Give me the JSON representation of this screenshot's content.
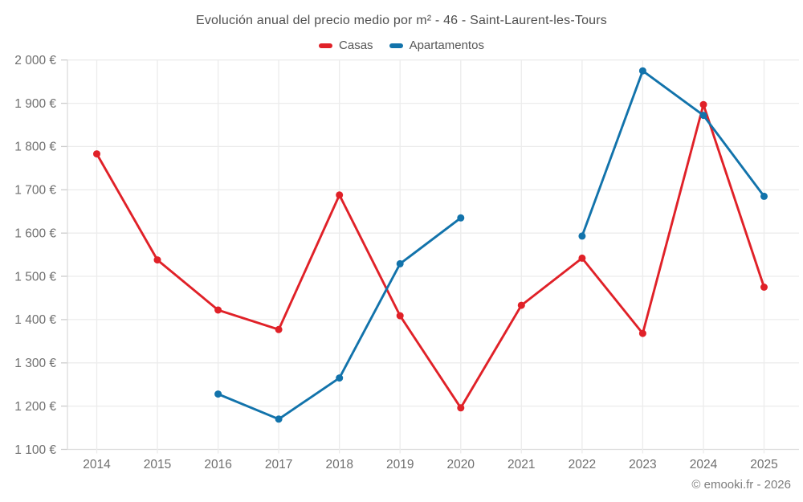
{
  "page": {
    "footer": "© emooki.fr - 2026"
  },
  "chart_data": {
    "type": "line",
    "title": "Evolución anual del precio medio por m² - 46 - Saint-Laurent-les-Tours",
    "x": [
      "2014",
      "2015",
      "2016",
      "2017",
      "2018",
      "2019",
      "2020",
      "2021",
      "2022",
      "2023",
      "2024",
      "2025"
    ],
    "xlabel": "",
    "ylabel": "",
    "ylim": [
      1100,
      2000
    ],
    "ytick_step": 100,
    "ytick_labels": [
      "1 100 €",
      "1 200 €",
      "1 300 €",
      "1 400 €",
      "1 500 €",
      "1 600 €",
      "1 700 €",
      "1 800 €",
      "1 900 €",
      "2 000 €"
    ],
    "grid": true,
    "legend_position": "top",
    "currency": "€",
    "series": [
      {
        "name": "Casas",
        "color": "#e02128",
        "values": [
          1783,
          1538,
          1422,
          1377,
          1688,
          1409,
          1196,
          1433,
          1542,
          1368,
          1897,
          1475
        ]
      },
      {
        "name": "Apartamentos",
        "color": "#1273ab",
        "values": [
          null,
          null,
          1228,
          1170,
          1265,
          1529,
          1635,
          null,
          1593,
          1975,
          1872,
          1685
        ]
      }
    ]
  }
}
